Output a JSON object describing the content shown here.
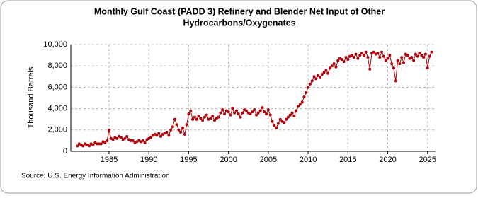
{
  "chart_data": {
    "type": "line",
    "title": [
      "Monthly Gulf Coast (PADD 3) Refinery and Blender Net Input of Other",
      "Hydrocarbons/Oxygenates"
    ],
    "y_label": "Thousand Barrels",
    "source": "Source: U.S. Energy Information Administration",
    "xlim": [
      1980.2,
      2026
    ],
    "xticks": [
      1985,
      1990,
      1995,
      2000,
      2005,
      2010,
      2015,
      2020,
      2025
    ],
    "ylim": [
      0,
      10000
    ],
    "yticks": [
      0,
      {
        "value": 2000,
        "label": "2,000"
      },
      {
        "value": 4000,
        "label": "4,000"
      },
      {
        "value": 6000,
        "label": "6,000"
      },
      {
        "value": 8000,
        "label": "8,000"
      },
      {
        "value": 10000,
        "label": "10,000"
      }
    ],
    "grid": true,
    "series": [
      {
        "color": "#b0000a",
        "x": [
          1981,
          1981.25,
          1981.5,
          1981.75,
          1982,
          1982.25,
          1982.5,
          1982.75,
          1983,
          1983.25,
          1983.5,
          1983.75,
          1984,
          1984.25,
          1984.5,
          1984.75,
          1985,
          1985.25,
          1985.5,
          1985.75,
          1986,
          1986.25,
          1986.5,
          1986.75,
          1987,
          1987.25,
          1987.5,
          1987.75,
          1988,
          1988.25,
          1988.5,
          1988.75,
          1989,
          1989.25,
          1989.5,
          1989.75,
          1990,
          1990.25,
          1990.5,
          1990.75,
          1991,
          1991.25,
          1991.5,
          1991.75,
          1992,
          1992.25,
          1992.5,
          1992.75,
          1993,
          1993.25,
          1993.5,
          1993.75,
          1994,
          1994.25,
          1994.5,
          1994.75,
          1995,
          1995.25,
          1995.5,
          1995.75,
          1996,
          1996.25,
          1996.5,
          1996.75,
          1997,
          1997.25,
          1997.5,
          1997.75,
          1998,
          1998.25,
          1998.5,
          1998.75,
          1999,
          1999.25,
          1999.5,
          1999.75,
          2000,
          2000.25,
          2000.5,
          2000.75,
          2001,
          2001.25,
          2001.5,
          2001.75,
          2002,
          2002.25,
          2002.5,
          2002.75,
          2003,
          2003.25,
          2003.5,
          2003.75,
          2004,
          2004.25,
          2004.5,
          2004.75,
          2005,
          2005.25,
          2005.5,
          2005.75,
          2006,
          2006.25,
          2006.5,
          2006.75,
          2007,
          2007.25,
          2007.5,
          2007.75,
          2008,
          2008.25,
          2008.5,
          2008.75,
          2009,
          2009.25,
          2009.5,
          2009.75,
          2010,
          2010.25,
          2010.5,
          2010.75,
          2011,
          2011.25,
          2011.5,
          2011.75,
          2012,
          2012.25,
          2012.5,
          2012.75,
          2013,
          2013.25,
          2013.5,
          2013.75,
          2014,
          2014.25,
          2014.5,
          2014.75,
          2015,
          2015.25,
          2015.5,
          2015.75,
          2016,
          2016.25,
          2016.5,
          2016.75,
          2017,
          2017.25,
          2017.5,
          2017.75,
          2018,
          2018.25,
          2018.5,
          2018.75,
          2019,
          2019.25,
          2019.5,
          2019.75,
          2020,
          2020.25,
          2020.5,
          2020.75,
          2021,
          2021.25,
          2021.5,
          2021.75,
          2022,
          2022.25,
          2022.5,
          2022.75,
          2023,
          2023.25,
          2023.5,
          2023.75,
          2024,
          2024.25,
          2024.5,
          2024.75,
          2025,
          2025.25,
          2025.5
        ],
        "values": [
          500,
          700,
          600,
          500,
          700,
          600,
          500,
          700,
          600,
          800,
          700,
          700,
          700,
          900,
          800,
          1000,
          2000,
          1200,
          1100,
          1300,
          1200,
          1400,
          1300,
          1100,
          1200,
          1400,
          1100,
          1000,
          1000,
          800,
          900,
          1000,
          900,
          1000,
          800,
          1100,
          1200,
          1300,
          1500,
          1600,
          1500,
          1700,
          1400,
          1600,
          1700,
          1800,
          1500,
          2000,
          2300,
          3000,
          2500,
          2000,
          1800,
          2200,
          1600,
          2500,
          3500,
          3800,
          3000,
          3200,
          3000,
          3300,
          3100,
          2900,
          3200,
          3400,
          3000,
          3100,
          3300,
          2900,
          3100,
          3200,
          3600,
          3900,
          3500,
          3800,
          3700,
          3400,
          4000,
          3600,
          3800,
          3500,
          3200,
          3600,
          3900,
          3800,
          3600,
          3500,
          3700,
          3900,
          3400,
          3600,
          3800,
          4100,
          3700,
          3500,
          3900,
          3400,
          2800,
          2400,
          2200,
          2600,
          3000,
          2800,
          2700,
          3000,
          3200,
          3400,
          3600,
          3300,
          3800,
          4200,
          4400,
          4600,
          5100,
          5500,
          6000,
          6300,
          6600,
          7000,
          6800,
          7100,
          6900,
          7200,
          7400,
          7600,
          7300,
          7800,
          8000,
          8200,
          7900,
          8500,
          8700,
          8600,
          8400,
          8800,
          8600,
          8900,
          9000,
          8800,
          9100,
          8700,
          9000,
          9200,
          9000,
          9300,
          8800,
          7700,
          9200,
          9300,
          9100,
          9200,
          8800,
          9300,
          8900,
          8500,
          8700,
          9000,
          8200,
          7800,
          6600,
          8500,
          8200,
          8800,
          8300,
          9100,
          9000,
          8700,
          8800,
          8500,
          9100,
          8900,
          9200,
          9000,
          8800,
          9100,
          7800,
          8900,
          9300
        ]
      }
    ]
  }
}
